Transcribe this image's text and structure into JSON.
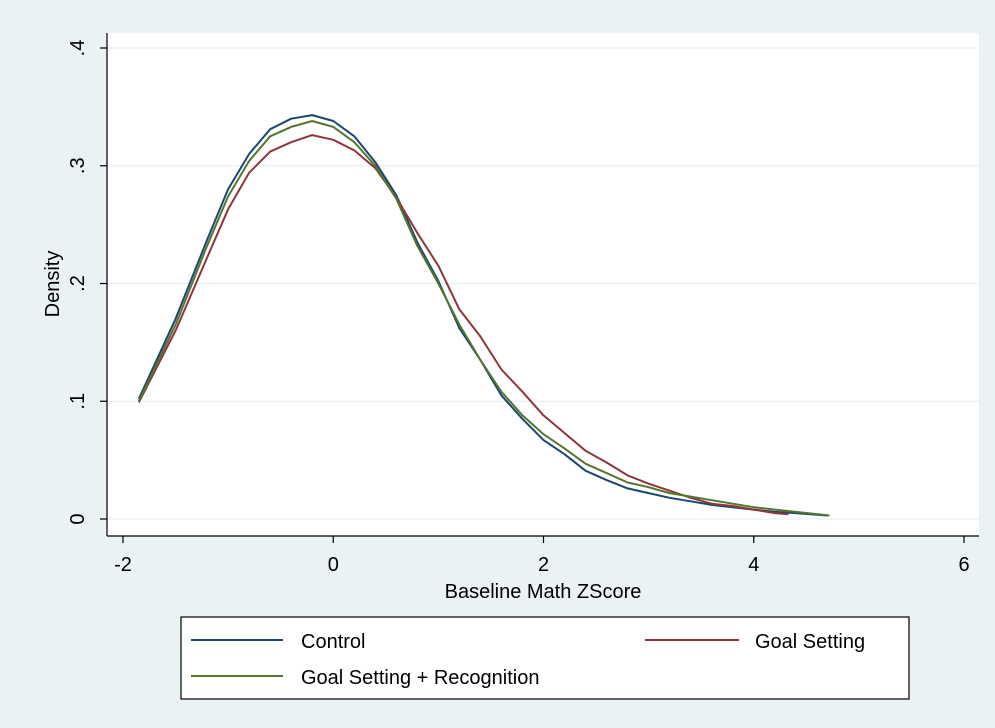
{
  "chart_data": {
    "type": "line",
    "xlabel": "Baseline Math ZScore",
    "ylabel": "Density",
    "xlim": [
      -2,
      6
    ],
    "ylim": [
      0,
      0.4
    ],
    "x_ticks": [
      -2,
      0,
      2,
      4,
      6
    ],
    "x_tick_labels": [
      "-2",
      "0",
      "2",
      "4",
      "6"
    ],
    "y_ticks": [
      0,
      0.1,
      0.2,
      0.3,
      0.4
    ],
    "y_tick_labels": [
      "0",
      ".1",
      ".2",
      ".3",
      ".4"
    ],
    "grid": "horizontal",
    "legend_position": "bottom",
    "series": [
      {
        "name": "Control",
        "color": "#1a476f",
        "points": [
          [
            -1.85,
            0.102
          ],
          [
            -1.5,
            0.17
          ],
          [
            -1.2,
            0.237
          ],
          [
            -1.0,
            0.28
          ],
          [
            -0.8,
            0.31
          ],
          [
            -0.6,
            0.331
          ],
          [
            -0.4,
            0.34
          ],
          [
            -0.2,
            0.343
          ],
          [
            0.0,
            0.338
          ],
          [
            0.2,
            0.325
          ],
          [
            0.4,
            0.303
          ],
          [
            0.6,
            0.275
          ],
          [
            0.8,
            0.235
          ],
          [
            1.0,
            0.202
          ],
          [
            1.2,
            0.162
          ],
          [
            1.4,
            0.135
          ],
          [
            1.6,
            0.105
          ],
          [
            1.8,
            0.085
          ],
          [
            2.0,
            0.067
          ],
          [
            2.2,
            0.055
          ],
          [
            2.4,
            0.041
          ],
          [
            2.6,
            0.033
          ],
          [
            2.8,
            0.026
          ],
          [
            3.0,
            0.022
          ],
          [
            3.2,
            0.018
          ],
          [
            3.4,
            0.015
          ],
          [
            3.6,
            0.012
          ],
          [
            3.8,
            0.01
          ],
          [
            4.0,
            0.008
          ],
          [
            4.2,
            0.006
          ],
          [
            4.4,
            0.005
          ],
          [
            4.7,
            0.003
          ]
        ]
      },
      {
        "name": "Goal Setting",
        "color": "#90353b",
        "points": [
          [
            -1.85,
            0.099
          ],
          [
            -1.5,
            0.16
          ],
          [
            -1.2,
            0.222
          ],
          [
            -1.0,
            0.263
          ],
          [
            -0.8,
            0.294
          ],
          [
            -0.6,
            0.312
          ],
          [
            -0.4,
            0.32
          ],
          [
            -0.2,
            0.326
          ],
          [
            0.0,
            0.322
          ],
          [
            0.2,
            0.313
          ],
          [
            0.4,
            0.298
          ],
          [
            0.6,
            0.273
          ],
          [
            0.8,
            0.243
          ],
          [
            1.0,
            0.215
          ],
          [
            1.2,
            0.178
          ],
          [
            1.4,
            0.155
          ],
          [
            1.6,
            0.127
          ],
          [
            1.8,
            0.108
          ],
          [
            2.0,
            0.088
          ],
          [
            2.2,
            0.073
          ],
          [
            2.4,
            0.058
          ],
          [
            2.6,
            0.048
          ],
          [
            2.8,
            0.037
          ],
          [
            3.0,
            0.03
          ],
          [
            3.2,
            0.024
          ],
          [
            3.4,
            0.018
          ],
          [
            3.6,
            0.013
          ],
          [
            3.8,
            0.011
          ],
          [
            4.0,
            0.008
          ],
          [
            4.2,
            0.005
          ],
          [
            4.33,
            0.004
          ]
        ]
      },
      {
        "name": "Goal Setting + Recognition",
        "color": "#55752f",
        "points": [
          [
            -1.85,
            0.1
          ],
          [
            -1.5,
            0.165
          ],
          [
            -1.2,
            0.232
          ],
          [
            -1.0,
            0.274
          ],
          [
            -0.8,
            0.304
          ],
          [
            -0.6,
            0.325
          ],
          [
            -0.4,
            0.333
          ],
          [
            -0.2,
            0.338
          ],
          [
            0.0,
            0.333
          ],
          [
            0.2,
            0.32
          ],
          [
            0.4,
            0.3
          ],
          [
            0.6,
            0.272
          ],
          [
            0.8,
            0.232
          ],
          [
            1.0,
            0.2
          ],
          [
            1.2,
            0.165
          ],
          [
            1.4,
            0.135
          ],
          [
            1.6,
            0.108
          ],
          [
            1.8,
            0.088
          ],
          [
            2.0,
            0.072
          ],
          [
            2.2,
            0.06
          ],
          [
            2.4,
            0.047
          ],
          [
            2.6,
            0.039
          ],
          [
            2.8,
            0.031
          ],
          [
            3.0,
            0.027
          ],
          [
            3.2,
            0.022
          ],
          [
            3.4,
            0.019
          ],
          [
            3.6,
            0.016
          ],
          [
            3.8,
            0.013
          ],
          [
            4.0,
            0.01
          ],
          [
            4.2,
            0.008
          ],
          [
            4.4,
            0.006
          ],
          [
            4.72,
            0.003
          ]
        ]
      }
    ]
  }
}
